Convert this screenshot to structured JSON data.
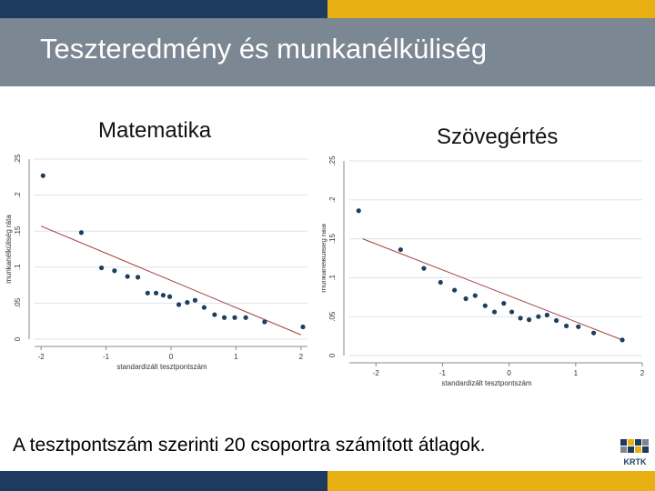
{
  "slide": {
    "title": "Teszteredmény és munkanélküliség",
    "caption": "A tesztpontszám szerinti 20 csoportra számított átlagok.",
    "logo_text": "KRTK"
  },
  "colors": {
    "navy": "#1d3a5f",
    "gold": "#e8b013",
    "title_band": "#7b8793",
    "point": "#1f3f5f",
    "fit_line": "#a04040",
    "grid": "#dde3ea",
    "logo_blocks": [
      "#1d3a5f",
      "#e8b013",
      "#7b8793"
    ]
  },
  "chart_data": [
    {
      "type": "scatter",
      "label": "Matematika",
      "xlabel": "standardizált tesztpontszám",
      "ylabel": "munkanélküliség ráta",
      "xlim": [
        -2.1,
        2.1
      ],
      "ylim": [
        0,
        0.25
      ],
      "xticks": [
        -2,
        -1,
        0,
        1,
        2
      ],
      "xtick_labels": [
        "-2",
        "-1",
        "0",
        "1",
        "2"
      ],
      "yticks": [
        0,
        0.05,
        0.1,
        0.15,
        0.2,
        0.25
      ],
      "ytick_labels": [
        "0",
        ".05",
        ".1",
        ".15",
        ".2",
        ".25"
      ],
      "grid": true,
      "x": [
        -1.97,
        -1.38,
        -1.07,
        -0.87,
        -0.67,
        -0.51,
        -0.36,
        -0.23,
        -0.12,
        -0.02,
        0.12,
        0.25,
        0.37,
        0.51,
        0.67,
        0.82,
        0.98,
        1.15,
        1.44,
        2.03
      ],
      "y": [
        0.227,
        0.148,
        0.099,
        0.095,
        0.087,
        0.086,
        0.064,
        0.064,
        0.061,
        0.059,
        0.048,
        0.051,
        0.054,
        0.044,
        0.034,
        0.03,
        0.03,
        0.03,
        0.024,
        0.017
      ],
      "fit_line": {
        "x": [
          -2.0,
          2.0
        ],
        "y": [
          0.157,
          0.006
        ]
      }
    },
    {
      "type": "scatter",
      "label": "Szövegértés",
      "xlabel": "standardizált tesztpontszám",
      "ylabel": "munkanélküliség ráta",
      "xlim": [
        -2.4,
        2.0
      ],
      "ylim": [
        0,
        0.25
      ],
      "xticks": [
        -2,
        -1,
        0,
        1,
        2
      ],
      "xtick_labels": [
        "-2",
        "-1",
        "0",
        "1",
        "2"
      ],
      "yticks": [
        0,
        0.05,
        0.1,
        0.15,
        0.2,
        0.25
      ],
      "ytick_labels": [
        "0",
        ".05",
        ".1",
        ".15",
        ".2",
        ".25"
      ],
      "grid": true,
      "x": [
        -2.26,
        -1.63,
        -1.28,
        -1.03,
        -0.82,
        -0.65,
        -0.51,
        -0.36,
        -0.22,
        -0.08,
        0.04,
        0.17,
        0.3,
        0.44,
        0.57,
        0.71,
        0.86,
        1.04,
        1.27,
        1.7
      ],
      "y": [
        0.186,
        0.136,
        0.112,
        0.094,
        0.084,
        0.073,
        0.077,
        0.064,
        0.056,
        0.067,
        0.056,
        0.048,
        0.046,
        0.05,
        0.052,
        0.045,
        0.038,
        0.037,
        0.029,
        0.02
      ],
      "fit_line": {
        "x": [
          -2.2,
          1.7
        ],
        "y": [
          0.15,
          0.02
        ]
      }
    }
  ]
}
